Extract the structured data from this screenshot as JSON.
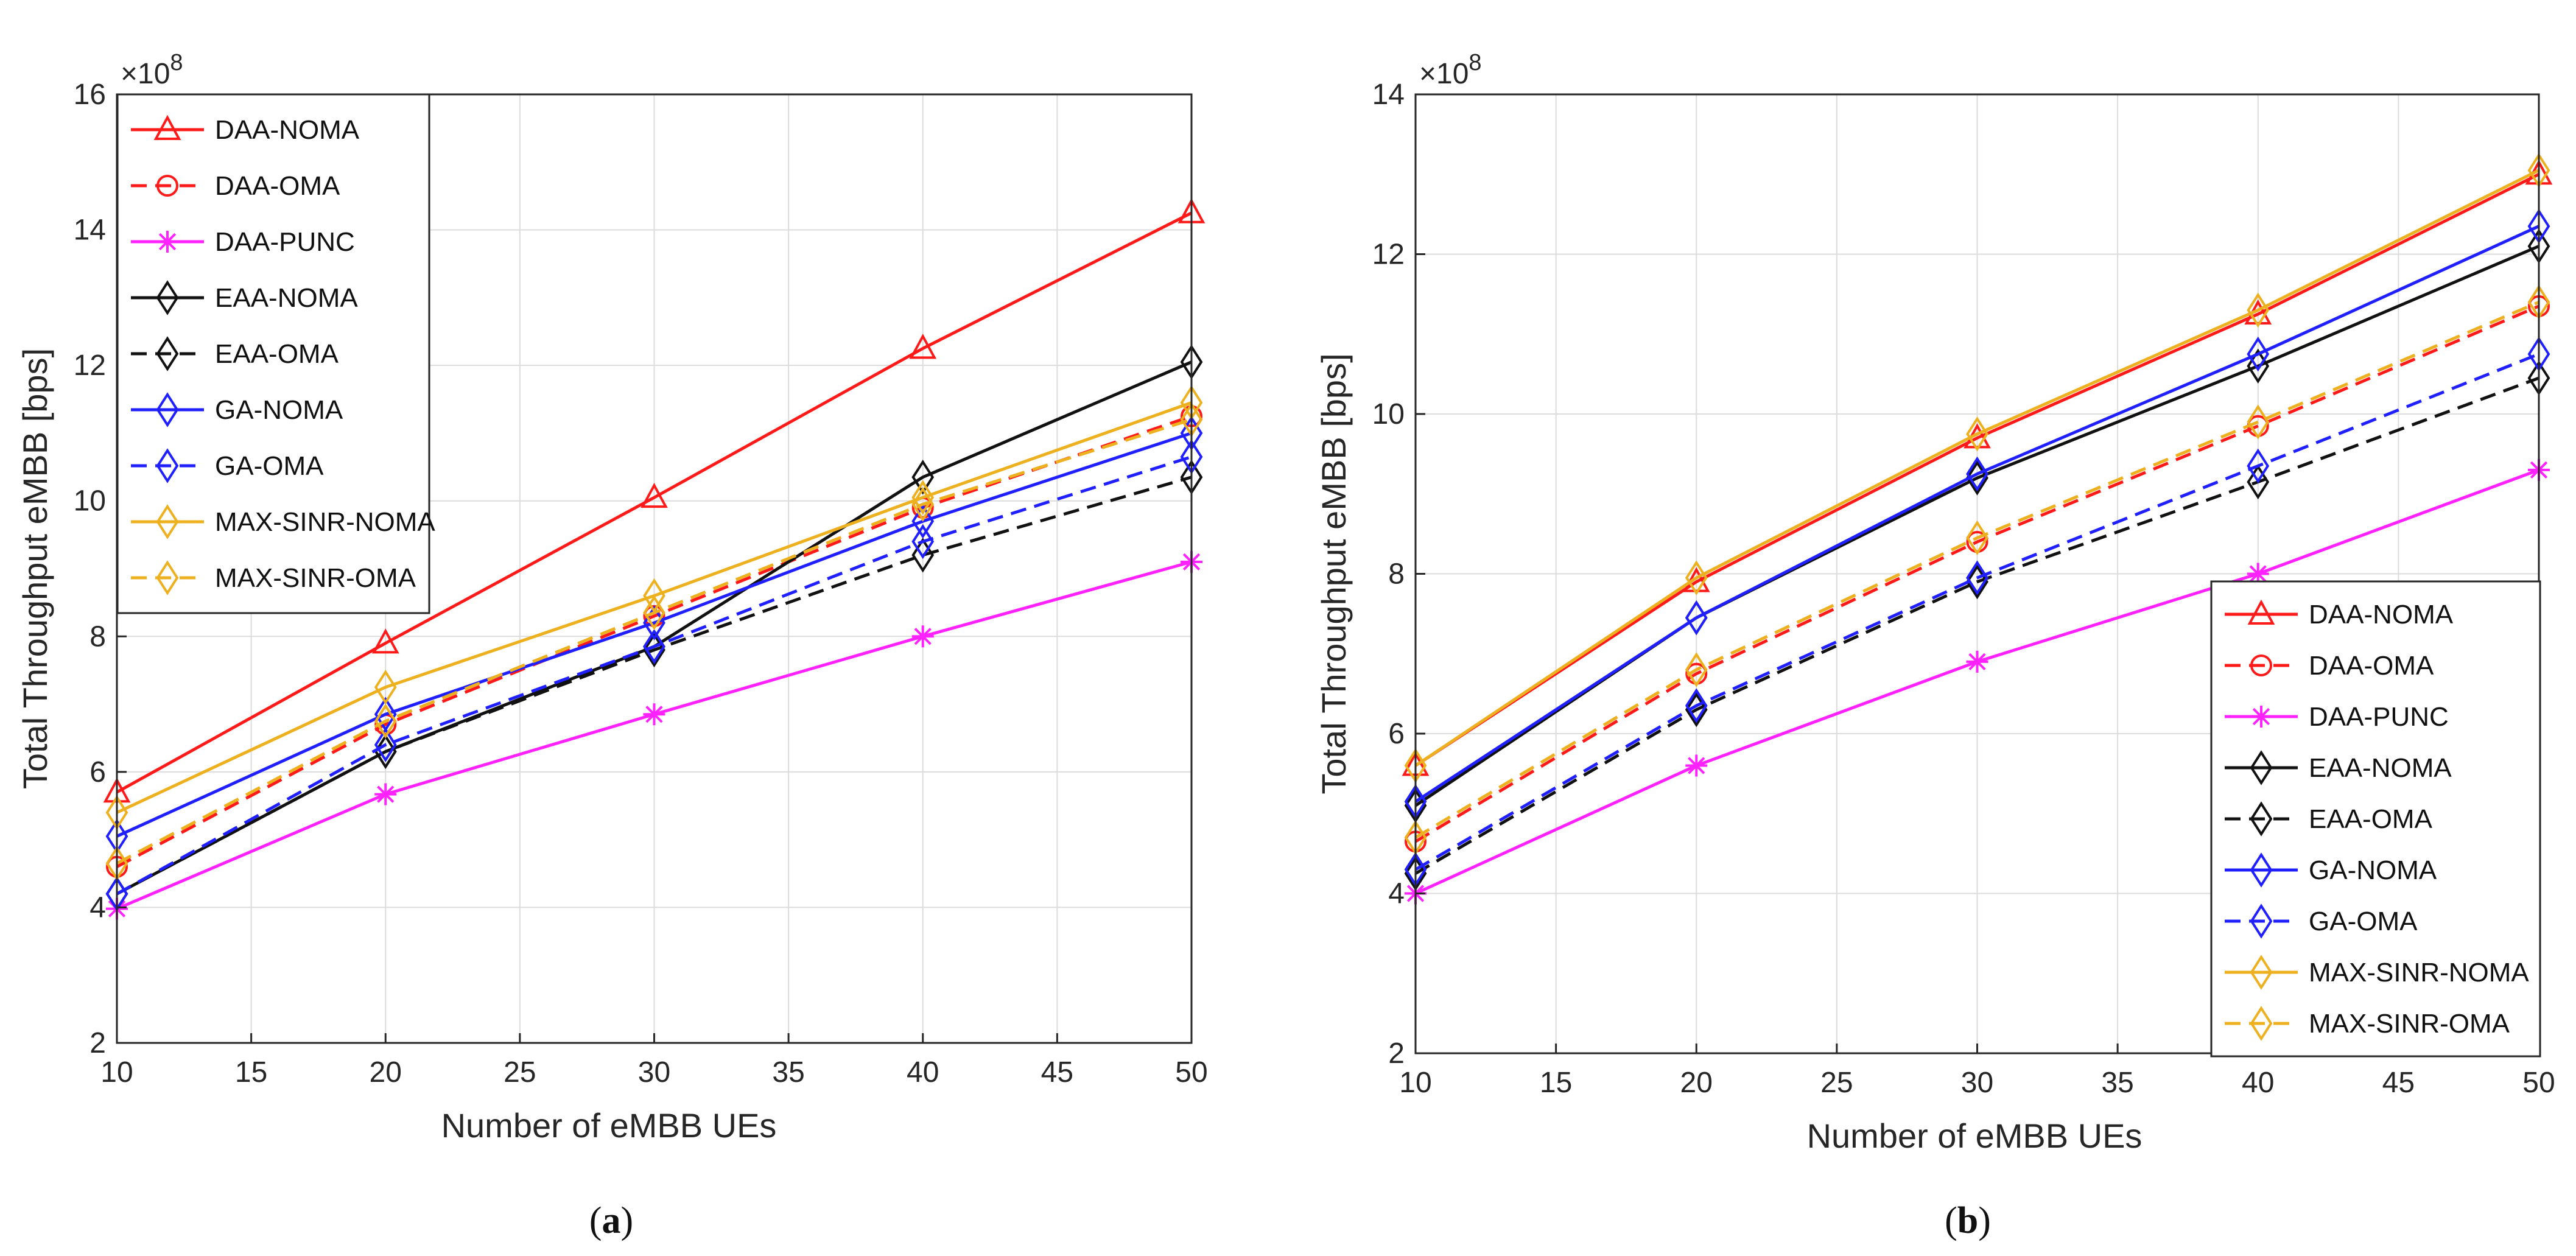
{
  "chart_data": [
    {
      "type": "line",
      "panel_label": "a",
      "title": "",
      "xlabel": "Number of eMBB UEs",
      "ylabel": "Total Throughput eMBB [bps]",
      "y_exponent_base": "10",
      "y_exponent_power": "8",
      "xlim": [
        10,
        50
      ],
      "ylim": [
        2,
        16
      ],
      "xticks": [
        10,
        15,
        20,
        25,
        30,
        35,
        40,
        45,
        50
      ],
      "yticks": [
        2,
        4,
        6,
        8,
        10,
        12,
        14,
        16
      ],
      "grid": true,
      "legend_position": "top-left",
      "x": [
        10,
        20,
        30,
        40,
        50
      ],
      "series": [
        {
          "name": "DAA-NOMA",
          "values": [
            5.7,
            7.9,
            10.05,
            12.25,
            14.25
          ],
          "color": "#ff1a1a",
          "dash": "solid",
          "marker": "triangle"
        },
        {
          "name": "DAA-OMA",
          "values": [
            4.6,
            6.7,
            8.3,
            9.9,
            11.25
          ],
          "color": "#ff1a1a",
          "dash": "dashed",
          "marker": "circle"
        },
        {
          "name": "DAA-PUNC",
          "values": [
            3.98,
            5.67,
            6.85,
            8.0,
            9.1
          ],
          "color": "#ff22ff",
          "dash": "solid",
          "marker": "star"
        },
        {
          "name": "EAA-NOMA",
          "values": [
            4.2,
            6.3,
            7.85,
            10.35,
            12.05
          ],
          "color": "#111111",
          "dash": "solid",
          "marker": "diamond"
        },
        {
          "name": "EAA-OMA",
          "values": [
            4.2,
            6.3,
            7.8,
            9.2,
            10.35
          ],
          "color": "#111111",
          "dash": "dashed",
          "marker": "diamond"
        },
        {
          "name": "GA-NOMA",
          "values": [
            5.05,
            6.85,
            8.2,
            9.7,
            11.0
          ],
          "color": "#1f1fff",
          "dash": "solid",
          "marker": "diamond"
        },
        {
          "name": "GA-OMA",
          "values": [
            4.2,
            6.4,
            7.85,
            9.4,
            10.65
          ],
          "color": "#1f1fff",
          "dash": "dashed",
          "marker": "diamond"
        },
        {
          "name": "MAX-SINR-NOMA",
          "values": [
            5.4,
            7.25,
            8.6,
            10.05,
            11.45
          ],
          "color": "#edb120",
          "dash": "solid",
          "marker": "diamond"
        },
        {
          "name": "MAX-SINR-OMA",
          "values": [
            4.65,
            6.75,
            8.35,
            9.95,
            11.2
          ],
          "color": "#edb120",
          "dash": "dashed",
          "marker": "diamond"
        }
      ]
    },
    {
      "type": "line",
      "panel_label": "b",
      "title": "",
      "xlabel": "Number of eMBB UEs",
      "ylabel": "Total Throughput eMBB [bps]",
      "y_exponent_base": "10",
      "y_exponent_power": "8",
      "xlim": [
        10,
        50
      ],
      "ylim": [
        2,
        14
      ],
      "xticks": [
        10,
        15,
        20,
        25,
        30,
        35,
        40,
        45,
        50
      ],
      "yticks": [
        2,
        4,
        6,
        8,
        10,
        12,
        14
      ],
      "grid": true,
      "legend_position": "bottom-right",
      "x": [
        10,
        20,
        30,
        40,
        50
      ],
      "series": [
        {
          "name": "DAA-NOMA",
          "values": [
            5.6,
            7.9,
            9.7,
            11.25,
            13.0
          ],
          "color": "#ff1a1a",
          "dash": "solid",
          "marker": "triangle"
        },
        {
          "name": "DAA-OMA",
          "values": [
            4.65,
            6.75,
            8.4,
            9.85,
            11.35
          ],
          "color": "#ff1a1a",
          "dash": "dashed",
          "marker": "circle"
        },
        {
          "name": "DAA-PUNC",
          "values": [
            4.0,
            5.6,
            6.9,
            8.0,
            9.3
          ],
          "color": "#ff22ff",
          "dash": "solid",
          "marker": "star"
        },
        {
          "name": "EAA-NOMA",
          "values": [
            5.1,
            7.45,
            9.2,
            10.6,
            12.1
          ],
          "color": "#111111",
          "dash": "solid",
          "marker": "diamond"
        },
        {
          "name": "EAA-OMA",
          "values": [
            4.25,
            6.3,
            7.9,
            9.15,
            10.45
          ],
          "color": "#111111",
          "dash": "dashed",
          "marker": "diamond"
        },
        {
          "name": "GA-NOMA",
          "values": [
            5.15,
            7.45,
            9.25,
            10.75,
            12.35
          ],
          "color": "#1f1fff",
          "dash": "solid",
          "marker": "diamond"
        },
        {
          "name": "GA-OMA",
          "values": [
            4.3,
            6.35,
            7.95,
            9.35,
            10.75
          ],
          "color": "#1f1fff",
          "dash": "dashed",
          "marker": "diamond"
        },
        {
          "name": "MAX-SINR-NOMA",
          "values": [
            5.6,
            7.95,
            9.75,
            11.3,
            13.05
          ],
          "color": "#edb120",
          "dash": "solid",
          "marker": "diamond"
        },
        {
          "name": "MAX-SINR-OMA",
          "values": [
            4.7,
            6.8,
            8.45,
            9.9,
            11.4
          ],
          "color": "#edb120",
          "dash": "dashed",
          "marker": "diamond"
        }
      ]
    }
  ]
}
